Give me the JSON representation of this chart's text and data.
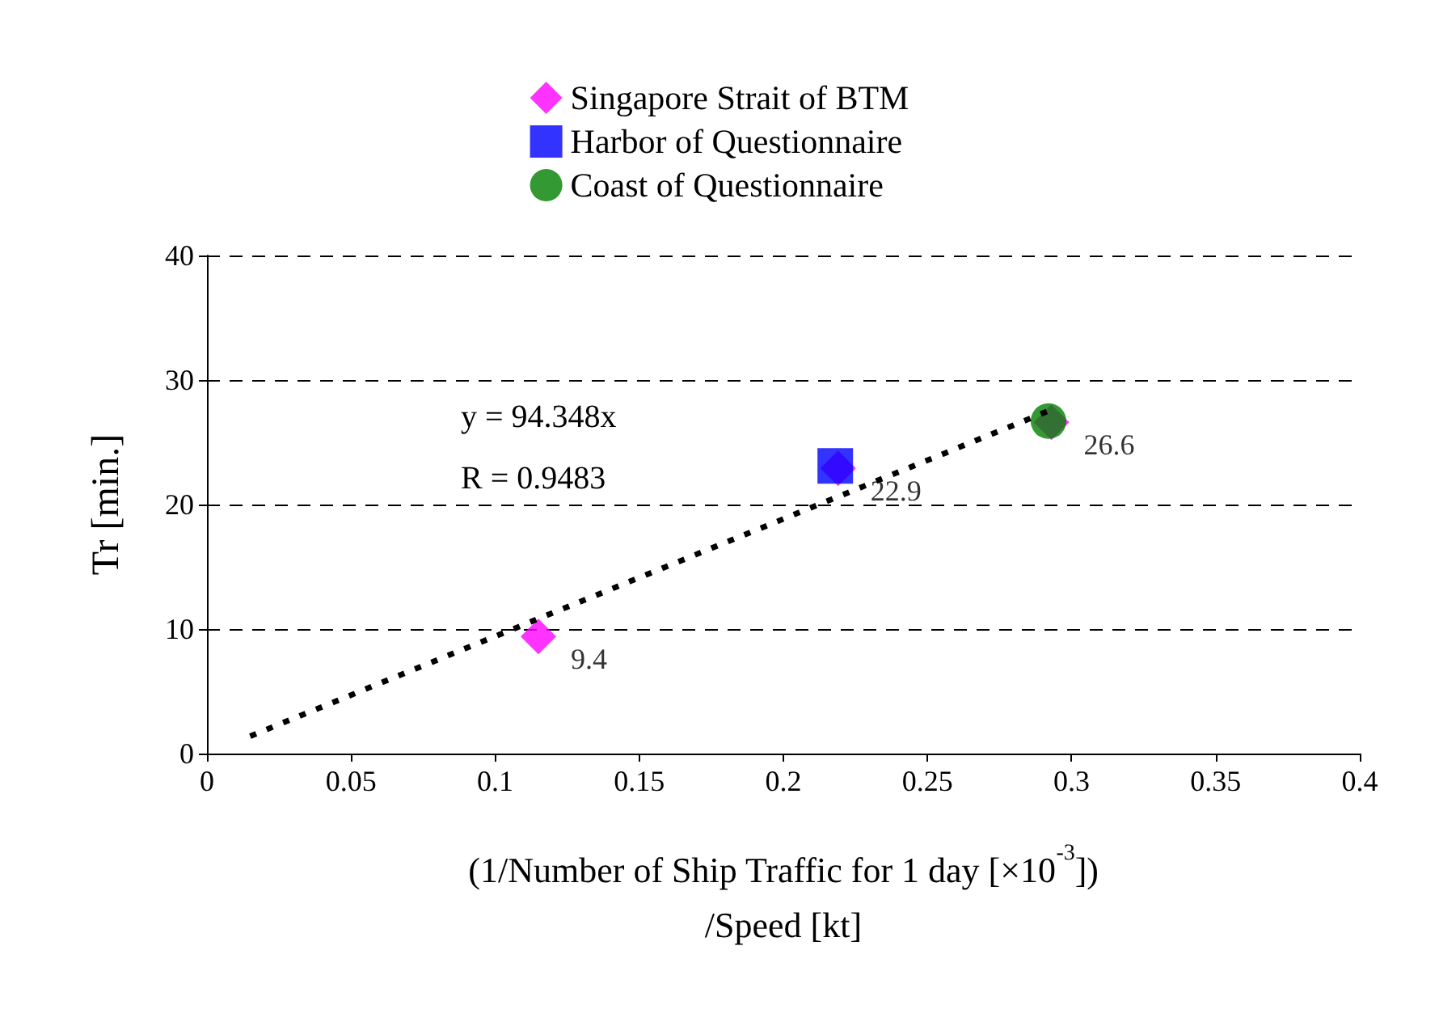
{
  "chart_data": {
    "type": "scatter",
    "xlabel": "(1/Number of Ship Traffic for 1 day [×10$^{-3}$])\n/Speed [kt]",
    "ylabel": "Tr [min.]",
    "xlim": [
      0,
      0.4
    ],
    "xticks": [
      0,
      0.05,
      0.1,
      0.15,
      0.2,
      0.25,
      0.3,
      0.35,
      0.4
    ],
    "ylim": [
      0,
      40
    ],
    "yticks": [
      0,
      10,
      20,
      30,
      40
    ],
    "grid": "y",
    "legend": "top",
    "annotations": [
      "y = 94.348x",
      "R = 0.9483"
    ],
    "series": [
      {
        "name": "Singapore Strait of BTM",
        "color": "#ff00ff",
        "marker": "diamond",
        "x": [
          0.115,
          0.219,
          0.293
        ],
        "values": [
          9.4,
          22.9,
          26.6
        ],
        "value_labels": [
          "9.4",
          "22.9",
          "26.6"
        ]
      },
      {
        "name": "Harbor of Questionnaire",
        "color": "#0000ff",
        "marker": "square",
        "x": [
          0.218
        ],
        "values": [
          23.1
        ]
      },
      {
        "name": "Coast of Questionnaire",
        "color": "#008000",
        "marker": "circle",
        "x": [
          0.292
        ],
        "values": [
          26.7
        ]
      },
      {
        "type": "line",
        "color": "#000000",
        "marker": "none",
        "line_style": "dotted",
        "x": [
          0.015,
          0.295
        ],
        "values": [
          1.4,
          27.8
        ]
      }
    ]
  }
}
